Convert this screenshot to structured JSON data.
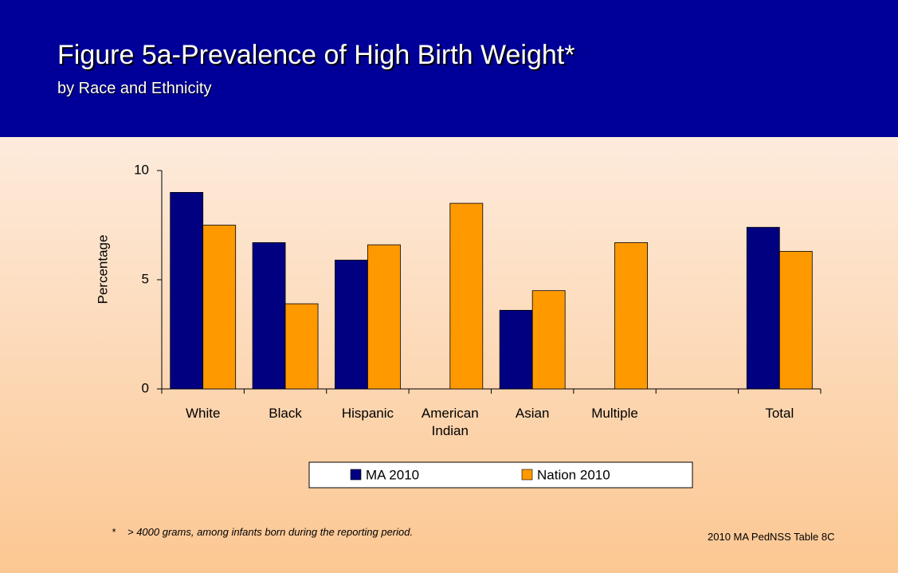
{
  "chart_data": {
    "type": "bar",
    "title": "Figure 5a-Prevalence of High Birth Weight*",
    "subtitle": "by Race and Ethnicity",
    "y_label": "Percentage",
    "categories": [
      "White",
      "Black",
      "Hispanic",
      "American Indian",
      "Asian",
      "Multiple",
      null,
      "Total"
    ],
    "series": [
      {
        "name": "MA 2010",
        "color": "#000080",
        "values": [
          9.0,
          6.7,
          5.9,
          null,
          3.6,
          null,
          null,
          7.4
        ]
      },
      {
        "name": "Nation 2010",
        "color": "#FF9900",
        "values": [
          7.5,
          3.9,
          6.6,
          8.5,
          4.5,
          6.7,
          null,
          6.3
        ]
      }
    ],
    "ylim": [
      0,
      10
    ],
    "yticks": [
      0,
      5,
      10
    ],
    "grid": false,
    "annotations": [
      "*",
      "> 4000 grams, among infants born during the reporting period."
    ],
    "source": "2010 MA PedNSS Table 8C"
  }
}
